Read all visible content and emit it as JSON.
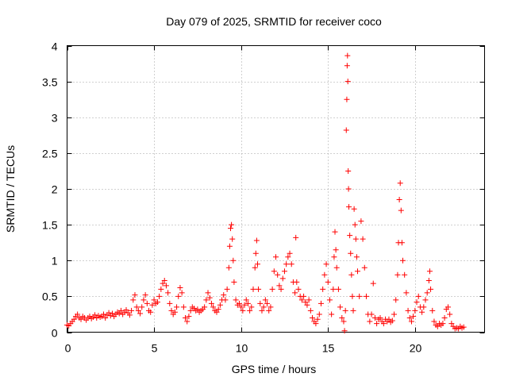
{
  "chart_data": {
    "type": "scatter",
    "title": "Day 079 of 2025, SRMTID for receiver coco",
    "xlabel": "GPS time / hours",
    "ylabel": "SRMTID / TECUs",
    "xlim": [
      0,
      24
    ],
    "ylim": [
      0,
      4
    ],
    "xticks": [
      0,
      5,
      10,
      15,
      20
    ],
    "yticks": [
      0,
      0.5,
      1,
      1.5,
      2,
      2.5,
      3,
      3.5,
      4
    ],
    "xtick_labels": [
      "0",
      "5",
      "10",
      "15",
      "20"
    ],
    "ytick_labels": [
      "0",
      "0.5",
      "1",
      "1.5",
      "2",
      "2.5",
      "3",
      "3.5",
      "4"
    ],
    "grid": true,
    "marker": "+",
    "color": "#ff0000",
    "series": [
      {
        "name": "SRMTID",
        "points": [
          [
            0.0,
            0.1
          ],
          [
            0.1,
            0.09
          ],
          [
            0.2,
            0.12
          ],
          [
            0.3,
            0.15
          ],
          [
            0.4,
            0.18
          ],
          [
            0.5,
            0.22
          ],
          [
            0.6,
            0.25
          ],
          [
            0.7,
            0.2
          ],
          [
            0.8,
            0.18
          ],
          [
            0.9,
            0.22
          ],
          [
            1.0,
            0.2
          ],
          [
            1.1,
            0.17
          ],
          [
            1.2,
            0.2
          ],
          [
            1.3,
            0.22
          ],
          [
            1.4,
            0.19
          ],
          [
            1.5,
            0.21
          ],
          [
            1.6,
            0.24
          ],
          [
            1.7,
            0.2
          ],
          [
            1.8,
            0.23
          ],
          [
            1.9,
            0.21
          ],
          [
            2.0,
            0.22
          ],
          [
            2.1,
            0.25
          ],
          [
            2.2,
            0.2
          ],
          [
            2.3,
            0.24
          ],
          [
            2.4,
            0.27
          ],
          [
            2.5,
            0.23
          ],
          [
            2.6,
            0.26
          ],
          [
            2.7,
            0.22
          ],
          [
            2.8,
            0.25
          ],
          [
            2.9,
            0.28
          ],
          [
            3.0,
            0.26
          ],
          [
            3.1,
            0.3
          ],
          [
            3.2,
            0.25
          ],
          [
            3.3,
            0.28
          ],
          [
            3.4,
            0.31
          ],
          [
            3.5,
            0.27
          ],
          [
            3.6,
            0.24
          ],
          [
            3.7,
            0.3
          ],
          [
            3.8,
            0.45
          ],
          [
            3.9,
            0.52
          ],
          [
            4.0,
            0.35
          ],
          [
            4.1,
            0.3
          ],
          [
            4.2,
            0.26
          ],
          [
            4.3,
            0.35
          ],
          [
            4.4,
            0.45
          ],
          [
            4.5,
            0.52
          ],
          [
            4.6,
            0.4
          ],
          [
            4.7,
            0.3
          ],
          [
            4.8,
            0.28
          ],
          [
            4.9,
            0.38
          ],
          [
            5.0,
            0.45
          ],
          [
            5.1,
            0.4
          ],
          [
            5.2,
            0.42
          ],
          [
            5.3,
            0.5
          ],
          [
            5.4,
            0.6
          ],
          [
            5.5,
            0.68
          ],
          [
            5.6,
            0.72
          ],
          [
            5.7,
            0.65
          ],
          [
            5.8,
            0.55
          ],
          [
            5.9,
            0.4
          ],
          [
            6.0,
            0.3
          ],
          [
            6.1,
            0.25
          ],
          [
            6.2,
            0.28
          ],
          [
            6.3,
            0.35
          ],
          [
            6.4,
            0.5
          ],
          [
            6.5,
            0.62
          ],
          [
            6.6,
            0.55
          ],
          [
            6.7,
            0.35
          ],
          [
            6.8,
            0.2
          ],
          [
            6.9,
            0.15
          ],
          [
            7.0,
            0.22
          ],
          [
            7.1,
            0.3
          ],
          [
            7.2,
            0.35
          ],
          [
            7.3,
            0.33
          ],
          [
            7.4,
            0.3
          ],
          [
            7.5,
            0.32
          ],
          [
            7.6,
            0.28
          ],
          [
            7.7,
            0.3
          ],
          [
            7.8,
            0.32
          ],
          [
            7.9,
            0.35
          ],
          [
            8.0,
            0.45
          ],
          [
            8.1,
            0.55
          ],
          [
            8.2,
            0.48
          ],
          [
            8.3,
            0.4
          ],
          [
            8.4,
            0.35
          ],
          [
            8.5,
            0.3
          ],
          [
            8.6,
            0.28
          ],
          [
            8.7,
            0.32
          ],
          [
            8.8,
            0.38
          ],
          [
            8.9,
            0.45
          ],
          [
            9.0,
            0.52
          ],
          [
            9.1,
            0.45
          ],
          [
            9.2,
            0.6
          ],
          [
            9.3,
            0.9
          ],
          [
            9.35,
            1.2
          ],
          [
            9.4,
            1.45
          ],
          [
            9.45,
            1.5
          ],
          [
            9.5,
            1.3
          ],
          [
            9.55,
            1.0
          ],
          [
            9.6,
            0.7
          ],
          [
            9.7,
            0.45
          ],
          [
            9.8,
            0.38
          ],
          [
            9.9,
            0.4
          ],
          [
            10.0,
            0.35
          ],
          [
            10.1,
            0.3
          ],
          [
            10.2,
            0.38
          ],
          [
            10.3,
            0.45
          ],
          [
            10.4,
            0.4
          ],
          [
            10.5,
            0.3
          ],
          [
            10.6,
            0.35
          ],
          [
            10.7,
            0.6
          ],
          [
            10.8,
            0.9
          ],
          [
            10.85,
            1.1
          ],
          [
            10.9,
            1.28
          ],
          [
            10.95,
            0.95
          ],
          [
            11.0,
            0.6
          ],
          [
            11.1,
            0.4
          ],
          [
            11.2,
            0.3
          ],
          [
            11.3,
            0.35
          ],
          [
            11.4,
            0.45
          ],
          [
            11.5,
            0.4
          ],
          [
            11.6,
            0.3
          ],
          [
            11.7,
            0.35
          ],
          [
            11.8,
            0.6
          ],
          [
            11.9,
            0.85
          ],
          [
            12.0,
            1.05
          ],
          [
            12.1,
            0.8
          ],
          [
            12.2,
            0.65
          ],
          [
            12.3,
            0.6
          ],
          [
            12.4,
            0.75
          ],
          [
            12.5,
            0.85
          ],
          [
            12.6,
            0.95
          ],
          [
            12.7,
            1.05
          ],
          [
            12.8,
            1.1
          ],
          [
            12.9,
            0.95
          ],
          [
            13.0,
            0.7
          ],
          [
            13.1,
            0.55
          ],
          [
            13.15,
            1.32
          ],
          [
            13.2,
            0.7
          ],
          [
            13.3,
            0.6
          ],
          [
            13.4,
            0.5
          ],
          [
            13.5,
            0.45
          ],
          [
            13.6,
            0.5
          ],
          [
            13.7,
            0.42
          ],
          [
            13.8,
            0.38
          ],
          [
            13.9,
            0.45
          ],
          [
            14.0,
            0.3
          ],
          [
            14.1,
            0.2
          ],
          [
            14.2,
            0.15
          ],
          [
            14.3,
            0.12
          ],
          [
            14.4,
            0.18
          ],
          [
            14.5,
            0.25
          ],
          [
            14.6,
            0.4
          ],
          [
            14.7,
            0.6
          ],
          [
            14.8,
            0.8
          ],
          [
            14.9,
            0.95
          ],
          [
            15.0,
            0.7
          ],
          [
            15.1,
            0.45
          ],
          [
            15.2,
            0.25
          ],
          [
            15.3,
            0.6
          ],
          [
            15.35,
            1.05
          ],
          [
            15.4,
            1.4
          ],
          [
            15.45,
            1.15
          ],
          [
            15.5,
            0.9
          ],
          [
            15.6,
            0.6
          ],
          [
            15.7,
            0.35
          ],
          [
            15.8,
            0.2
          ],
          [
            15.9,
            0.15
          ],
          [
            15.95,
            0.02
          ],
          [
            16.0,
            0.3
          ],
          [
            16.05,
            2.82
          ],
          [
            16.08,
            3.25
          ],
          [
            16.1,
            3.72
          ],
          [
            16.12,
            3.86
          ],
          [
            16.14,
            3.5
          ],
          [
            16.16,
            2.25
          ],
          [
            16.18,
            2.0
          ],
          [
            16.2,
            1.75
          ],
          [
            16.25,
            1.35
          ],
          [
            16.3,
            1.1
          ],
          [
            16.35,
            0.8
          ],
          [
            16.4,
            0.5
          ],
          [
            16.45,
            0.3
          ],
          [
            16.5,
            1.72
          ],
          [
            16.55,
            1.5
          ],
          [
            16.6,
            1.3
          ],
          [
            16.65,
            1.05
          ],
          [
            16.7,
            0.85
          ],
          [
            16.8,
            0.5
          ],
          [
            16.9,
            1.55
          ],
          [
            17.0,
            1.3
          ],
          [
            17.1,
            0.9
          ],
          [
            17.2,
            0.5
          ],
          [
            17.3,
            0.25
          ],
          [
            17.4,
            0.15
          ],
          [
            17.5,
            0.25
          ],
          [
            17.6,
            0.68
          ],
          [
            17.7,
            0.2
          ],
          [
            17.8,
            0.12
          ],
          [
            17.9,
            0.18
          ],
          [
            18.0,
            0.2
          ],
          [
            18.1,
            0.15
          ],
          [
            18.2,
            0.12
          ],
          [
            18.3,
            0.18
          ],
          [
            18.4,
            0.15
          ],
          [
            18.5,
            0.18
          ],
          [
            18.6,
            0.14
          ],
          [
            18.7,
            0.16
          ],
          [
            18.8,
            0.25
          ],
          [
            18.9,
            0.45
          ],
          [
            19.0,
            0.8
          ],
          [
            19.05,
            1.25
          ],
          [
            19.1,
            1.85
          ],
          [
            19.15,
            2.08
          ],
          [
            19.2,
            1.7
          ],
          [
            19.25,
            1.25
          ],
          [
            19.3,
            1.0
          ],
          [
            19.4,
            0.8
          ],
          [
            19.5,
            0.55
          ],
          [
            19.6,
            0.3
          ],
          [
            19.7,
            0.2
          ],
          [
            19.8,
            0.15
          ],
          [
            19.9,
            0.22
          ],
          [
            20.0,
            0.3
          ],
          [
            20.1,
            0.42
          ],
          [
            20.2,
            0.5
          ],
          [
            20.3,
            0.35
          ],
          [
            20.4,
            0.28
          ],
          [
            20.5,
            0.35
          ],
          [
            20.6,
            0.45
          ],
          [
            20.7,
            0.55
          ],
          [
            20.8,
            0.72
          ],
          [
            20.85,
            0.85
          ],
          [
            20.9,
            0.6
          ],
          [
            21.0,
            0.3
          ],
          [
            21.1,
            0.15
          ],
          [
            21.2,
            0.1
          ],
          [
            21.3,
            0.08
          ],
          [
            21.4,
            0.12
          ],
          [
            21.5,
            0.1
          ],
          [
            21.6,
            0.12
          ],
          [
            21.7,
            0.2
          ],
          [
            21.8,
            0.32
          ],
          [
            21.9,
            0.35
          ],
          [
            22.0,
            0.25
          ],
          [
            22.1,
            0.12
          ],
          [
            22.2,
            0.08
          ],
          [
            22.3,
            0.05
          ],
          [
            22.4,
            0.06
          ],
          [
            22.5,
            0.05
          ],
          [
            22.6,
            0.08
          ],
          [
            22.7,
            0.06
          ],
          [
            22.8,
            0.07
          ]
        ]
      }
    ]
  }
}
